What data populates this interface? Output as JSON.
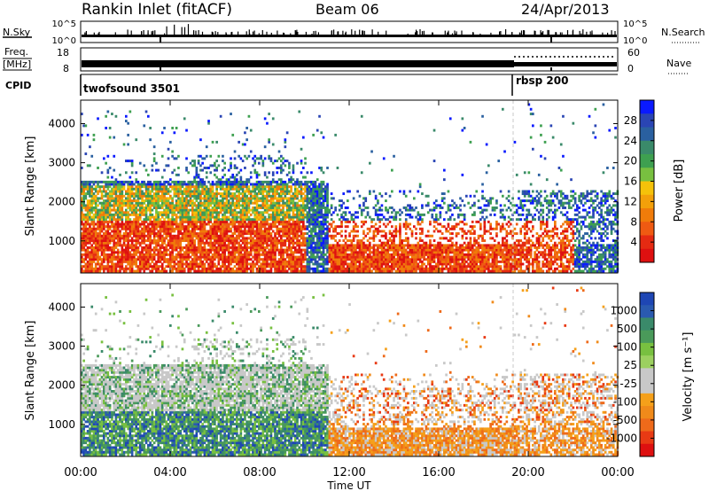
{
  "header": {
    "station": "Rankin Inlet (fitACF)",
    "beam": "Beam 06",
    "date": "24/Apr/2013"
  },
  "nsky_panel": {
    "left_label": "N.Sky",
    "right_label": "N.Search",
    "left_ticks": [
      "10^5",
      "10^0"
    ],
    "right_ticks": [
      "10^5",
      "10^0"
    ]
  },
  "freq_panel": {
    "left_label_1": "Freq.",
    "left_label_2": "[MHz]",
    "right_label": "Nave",
    "left_ticks": [
      "18",
      "8"
    ],
    "right_ticks": [
      "60",
      "0"
    ]
  },
  "cpid_panel": {
    "label": "CPID",
    "programs": [
      "twofsound 3501",
      "rbsp 200"
    ]
  },
  "chart_data": [
    {
      "type": "heatmap",
      "quantity": "Power",
      "ylabel": "Slant Range [km]",
      "yticks": [
        "1000",
        "2000",
        "3000",
        "4000"
      ],
      "ylim": [
        180,
        4600
      ],
      "colorbar": {
        "label": "Power [dB]",
        "ticks": [
          "4",
          "8",
          "12",
          "16",
          "20",
          "24",
          "28"
        ],
        "colors": [
          "#0a1aff",
          "#2a45b4",
          "#2a60a0",
          "#3a8a6a",
          "#3ea050",
          "#78c040",
          "#f5c20a",
          "#f3a00a",
          "#f07c0a",
          "#ef5a12",
          "#e52a12",
          "#de1010"
        ]
      }
    },
    {
      "type": "heatmap",
      "quantity": "Velocity",
      "ylabel": "Slant Range [km]",
      "yticks": [
        "1000",
        "2000",
        "3000",
        "4000"
      ],
      "ylim": [
        180,
        4600
      ],
      "colorbar": {
        "label": "Velocity [m s⁻¹]",
        "ticks": [
          "1000",
          "500",
          "100",
          "25",
          "-25",
          "-100",
          "-500",
          "-1000"
        ],
        "colors": [
          "#1e46b4",
          "#2a5ab0",
          "#3a8a6a",
          "#4a9a5a",
          "#78c040",
          "#9cd060",
          "#c8c8c8",
          "#c8c8c8",
          "#f5a01a",
          "#f08a1a",
          "#ee6a1a",
          "#e83a14",
          "#de1010"
        ]
      }
    }
  ],
  "xaxis": {
    "ticks": [
      "00:00",
      "04:00",
      "08:00",
      "12:00",
      "16:00",
      "20:00",
      "00:00"
    ],
    "label": "Time UT"
  }
}
